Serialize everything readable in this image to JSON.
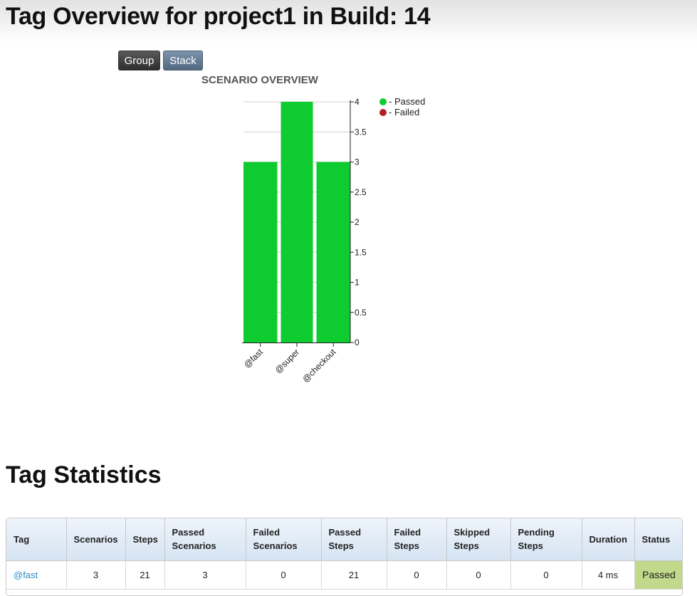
{
  "header": {
    "title": "Tag Overview for project1 in Build: 14"
  },
  "toolbar": {
    "group_label": "Group",
    "stack_label": "Stack"
  },
  "colors": {
    "passed": "#0ecb2f",
    "failed": "#b22222",
    "status_passed_bg": "#c2d88a"
  },
  "chart_data": {
    "type": "bar",
    "title": "SCENARIO OVERVIEW",
    "categories": [
      "@fast",
      "@super",
      "@checkout"
    ],
    "series": [
      {
        "name": "Passed",
        "values": [
          3,
          4,
          3
        ]
      },
      {
        "name": "Failed",
        "values": [
          0,
          0,
          0
        ]
      }
    ],
    "legend_labels": [
      "- Passed",
      "- Failed"
    ],
    "ylim": [
      0,
      4
    ],
    "yticks": [
      "0",
      "0.5",
      "1",
      "1.5",
      "2",
      "2.5",
      "3",
      "3.5",
      "4"
    ],
    "ytick_values": [
      0,
      0.5,
      1,
      1.5,
      2,
      2.5,
      3,
      3.5,
      4
    ],
    "grid": true,
    "legend_position": "top-right",
    "yaxis_side": "right"
  },
  "stats": {
    "title": "Tag Statistics",
    "columns": [
      "Tag",
      "Scenarios",
      "Steps",
      "Passed Scenarios",
      "Failed Scenarios",
      "Passed Steps",
      "Failed Steps",
      "Skipped Steps",
      "Pending Steps",
      "Duration",
      "Status"
    ],
    "rows": [
      {
        "tag": "@fast",
        "scenarios": "3",
        "steps": "21",
        "passed_scenarios": "3",
        "failed_scenarios": "0",
        "passed_steps": "21",
        "failed_steps": "0",
        "skipped_steps": "0",
        "pending_steps": "0",
        "duration": "4 ms",
        "status": "Passed"
      }
    ]
  }
}
